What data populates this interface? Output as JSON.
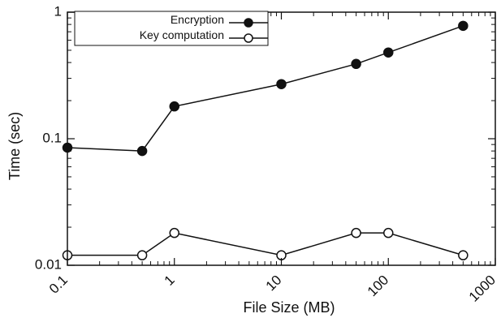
{
  "chart_data": {
    "type": "line",
    "xlabel": "File Size (MB)",
    "ylabel": "Time (sec)",
    "x_scale": "log",
    "y_scale": "log",
    "xlim": [
      0.1,
      1000
    ],
    "ylim": [
      0.01,
      1
    ],
    "x_ticks": [
      0.1,
      1,
      10,
      100,
      1000
    ],
    "x_tick_labels": [
      "0.1",
      "1",
      "10",
      "100",
      "1000"
    ],
    "y_ticks": [
      0.01,
      0.1,
      1
    ],
    "y_tick_labels": [
      "0.01",
      "0.1",
      "1"
    ],
    "grid": false,
    "legend_position": "top-left",
    "x": [
      0.1,
      0.5,
      1,
      10,
      50,
      100,
      500
    ],
    "series": [
      {
        "name": "Encryption",
        "marker": "filled-circle",
        "color": "#111111",
        "values": [
          0.085,
          0.08,
          0.18,
          0.27,
          0.39,
          0.48,
          0.78
        ]
      },
      {
        "name": "Key computation",
        "marker": "open-circle",
        "color": "#111111",
        "values": [
          0.012,
          0.012,
          0.018,
          0.012,
          0.018,
          0.018,
          0.012
        ]
      }
    ]
  }
}
